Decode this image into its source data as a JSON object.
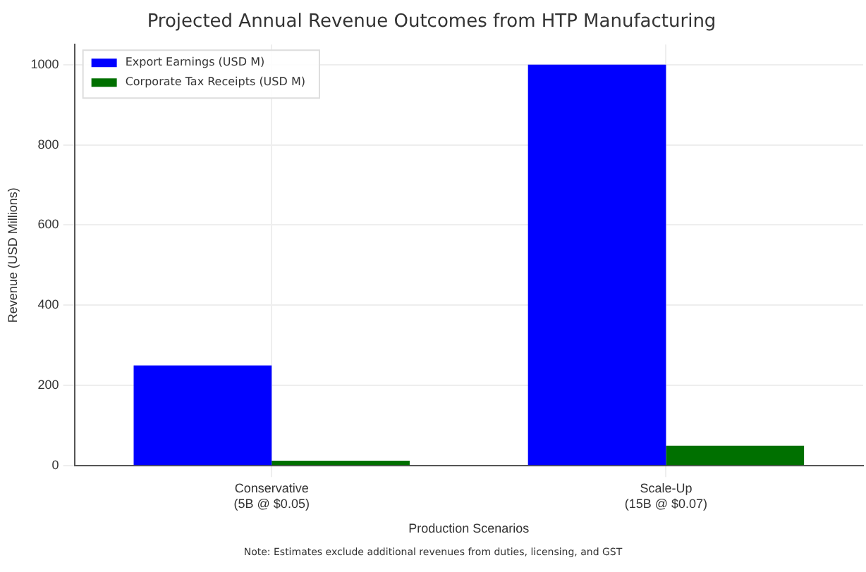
{
  "chart_data": {
    "type": "bar",
    "title": "Projected Annual Revenue Outcomes from HTP Manufacturing",
    "xlabel": "Production Scenarios",
    "ylabel": "Revenue (USD Millions)",
    "categories": [
      "Conservative\n(5B @ $0.05)",
      "Scale-Up\n(15B @ $0.07)"
    ],
    "series": [
      {
        "name": "Export Earnings (USD M)",
        "color": "#0000ff",
        "values": [
          250,
          1000
        ]
      },
      {
        "name": "Corporate Tax Receipts (USD M)",
        "color": "#007000",
        "values": [
          12.5,
          50
        ]
      }
    ],
    "ylim": [
      0,
      1050
    ],
    "yticks": [
      0,
      200,
      400,
      600,
      800,
      1000
    ],
    "grid": true,
    "legend": "top left",
    "annotations": [
      "Note: Estimates exclude additional revenues from duties, licensing, and GST"
    ]
  }
}
